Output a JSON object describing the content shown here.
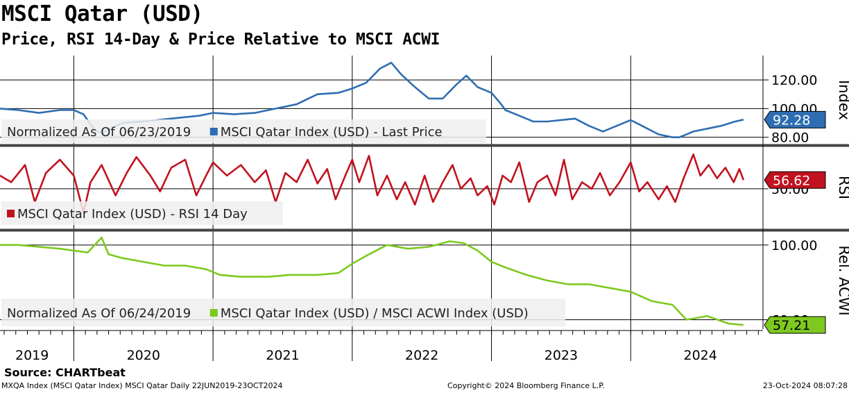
{
  "header": {
    "title": "MSCI Qatar (USD)",
    "subtitle": "Price, RSI 14-Day & Price Relative to MSCI ACWI"
  },
  "footer": {
    "source": "Source: CHARTbeat",
    "left": "MXQA Index (MSCI Qatar Index) MSCI Qatar  Daily 22JUN2019-23OCT2024",
    "middle": "Copyright© 2024 Bloomberg Finance L.P.",
    "right": "23-Oct-2024 08:07:28"
  },
  "chart_data": [
    {
      "type": "line",
      "axis_title": "Index",
      "legend_note": "Normalized As Of 06/23/2019",
      "ylim": [
        75,
        137
      ],
      "yticks": [
        80,
        100,
        120
      ],
      "ytick_labels": [
        "80.00",
        "100.00",
        "120.00"
      ],
      "grid": true,
      "legend_position": "bottom-left",
      "series": [
        {
          "name": "MSCI Qatar Index (USD) - Last Price",
          "color": "#2e6db1",
          "last_value_label": "92.28",
          "points": [
            [
              2019.47,
              100
            ],
            [
              2019.6,
              99
            ],
            [
              2019.75,
              97
            ],
            [
              2019.9,
              99
            ],
            [
              2020.0,
              99
            ],
            [
              2020.07,
              96
            ],
            [
              2020.15,
              85
            ],
            [
              2020.2,
              83
            ],
            [
              2020.35,
              90
            ],
            [
              2020.5,
              91
            ],
            [
              2020.7,
              93
            ],
            [
              2020.9,
              95
            ],
            [
              2021.0,
              97
            ],
            [
              2021.15,
              96
            ],
            [
              2021.3,
              97
            ],
            [
              2021.45,
              100
            ],
            [
              2021.6,
              103
            ],
            [
              2021.75,
              110
            ],
            [
              2021.9,
              111
            ],
            [
              2022.0,
              114
            ],
            [
              2022.1,
              118
            ],
            [
              2022.2,
              128
            ],
            [
              2022.28,
              132
            ],
            [
              2022.35,
              124
            ],
            [
              2022.45,
              115
            ],
            [
              2022.55,
              107
            ],
            [
              2022.65,
              107
            ],
            [
              2022.75,
              117
            ],
            [
              2022.82,
              123
            ],
            [
              2022.9,
              115
            ],
            [
              2023.0,
              111
            ],
            [
              2023.07,
              103
            ],
            [
              2023.1,
              99
            ],
            [
              2023.2,
              95
            ],
            [
              2023.3,
              91
            ],
            [
              2023.4,
              91
            ],
            [
              2023.5,
              92
            ],
            [
              2023.6,
              93
            ],
            [
              2023.7,
              88
            ],
            [
              2023.8,
              84
            ],
            [
              2023.9,
              88
            ],
            [
              2024.0,
              92
            ],
            [
              2024.1,
              87
            ],
            [
              2024.2,
              82
            ],
            [
              2024.3,
              80
            ],
            [
              2024.35,
              80
            ],
            [
              2024.45,
              84
            ],
            [
              2024.55,
              86
            ],
            [
              2024.65,
              88
            ],
            [
              2024.75,
              91
            ],
            [
              2024.81,
              92.28
            ]
          ]
        }
      ]
    },
    {
      "type": "line",
      "axis_title": "RSI",
      "ylim": [
        20,
        82
      ],
      "yticks": [
        50
      ],
      "ytick_labels": [
        "50.00"
      ],
      "grid": true,
      "legend_position": "bottom-left",
      "series": [
        {
          "name": "MSCI Qatar Index (USD) - RSI 14 Day",
          "color": "#c1121f",
          "last_value_label": "56.62",
          "points": [
            [
              2019.47,
              60
            ],
            [
              2019.55,
              55
            ],
            [
              2019.65,
              68
            ],
            [
              2019.72,
              40
            ],
            [
              2019.8,
              62
            ],
            [
              2019.9,
              72
            ],
            [
              2020.0,
              60
            ],
            [
              2020.07,
              32
            ],
            [
              2020.12,
              55
            ],
            [
              2020.2,
              68
            ],
            [
              2020.3,
              45
            ],
            [
              2020.38,
              62
            ],
            [
              2020.45,
              74
            ],
            [
              2020.55,
              60
            ],
            [
              2020.62,
              48
            ],
            [
              2020.7,
              66
            ],
            [
              2020.8,
              72
            ],
            [
              2020.88,
              45
            ],
            [
              2020.95,
              60
            ],
            [
              2021.0,
              70
            ],
            [
              2021.1,
              60
            ],
            [
              2021.2,
              68
            ],
            [
              2021.3,
              55
            ],
            [
              2021.38,
              64
            ],
            [
              2021.45,
              40
            ],
            [
              2021.52,
              62
            ],
            [
              2021.6,
              55
            ],
            [
              2021.68,
              72
            ],
            [
              2021.75,
              54
            ],
            [
              2021.82,
              65
            ],
            [
              2021.88,
              42
            ],
            [
              2021.95,
              60
            ],
            [
              2022.0,
              72
            ],
            [
              2022.05,
              55
            ],
            [
              2022.12,
              75
            ],
            [
              2022.18,
              45
            ],
            [
              2022.25,
              60
            ],
            [
              2022.32,
              42
            ],
            [
              2022.38,
              55
            ],
            [
              2022.45,
              38
            ],
            [
              2022.52,
              60
            ],
            [
              2022.58,
              40
            ],
            [
              2022.65,
              55
            ],
            [
              2022.72,
              68
            ],
            [
              2022.78,
              50
            ],
            [
              2022.85,
              58
            ],
            [
              2022.9,
              45
            ],
            [
              2022.97,
              52
            ],
            [
              2023.02,
              38
            ],
            [
              2023.08,
              60
            ],
            [
              2023.14,
              55
            ],
            [
              2023.2,
              70
            ],
            [
              2023.27,
              40
            ],
            [
              2023.33,
              55
            ],
            [
              2023.4,
              60
            ],
            [
              2023.46,
              45
            ],
            [
              2023.52,
              72
            ],
            [
              2023.58,
              42
            ],
            [
              2023.65,
              55
            ],
            [
              2023.72,
              50
            ],
            [
              2023.78,
              62
            ],
            [
              2023.85,
              45
            ],
            [
              2023.92,
              55
            ],
            [
              2024.0,
              70
            ],
            [
              2024.06,
              48
            ],
            [
              2024.12,
              55
            ],
            [
              2024.2,
              42
            ],
            [
              2024.26,
              52
            ],
            [
              2024.32,
              40
            ],
            [
              2024.38,
              58
            ],
            [
              2024.45,
              76
            ],
            [
              2024.5,
              60
            ],
            [
              2024.56,
              68
            ],
            [
              2024.62,
              58
            ],
            [
              2024.68,
              66
            ],
            [
              2024.74,
              55
            ],
            [
              2024.78,
              65
            ],
            [
              2024.81,
              56.62
            ]
          ]
        }
      ]
    },
    {
      "type": "line",
      "axis_title": "Rel. ACWI",
      "legend_note": "Normalized As Of 06/24/2019",
      "ylim": [
        55,
        107
      ],
      "yticks": [
        60,
        100
      ],
      "ytick_labels": [
        "60.00",
        "100.00"
      ],
      "grid": true,
      "legend_position": "bottom-left",
      "series": [
        {
          "name": "MSCI Qatar Index (USD) / MSCI ACWI Index (USD)",
          "color": "#7dc91f",
          "last_value_label": "57.21",
          "points": [
            [
              2019.47,
              100
            ],
            [
              2019.6,
              100
            ],
            [
              2019.75,
              99
            ],
            [
              2019.9,
              98
            ],
            [
              2020.0,
              97
            ],
            [
              2020.1,
              96
            ],
            [
              2020.2,
              104
            ],
            [
              2020.25,
              95
            ],
            [
              2020.35,
              93
            ],
            [
              2020.5,
              91
            ],
            [
              2020.65,
              89
            ],
            [
              2020.8,
              89
            ],
            [
              2020.95,
              87
            ],
            [
              2021.05,
              84
            ],
            [
              2021.2,
              83
            ],
            [
              2021.4,
              83
            ],
            [
              2021.55,
              84
            ],
            [
              2021.75,
              84
            ],
            [
              2021.9,
              85
            ],
            [
              2022.0,
              90
            ],
            [
              2022.12,
              95
            ],
            [
              2022.25,
              100
            ],
            [
              2022.4,
              98
            ],
            [
              2022.55,
              99
            ],
            [
              2022.7,
              102
            ],
            [
              2022.8,
              101
            ],
            [
              2022.9,
              97
            ],
            [
              2023.0,
              91
            ],
            [
              2023.1,
              88
            ],
            [
              2023.25,
              84
            ],
            [
              2023.4,
              81
            ],
            [
              2023.55,
              79
            ],
            [
              2023.7,
              79
            ],
            [
              2023.85,
              77
            ],
            [
              2024.0,
              75
            ],
            [
              2024.15,
              70
            ],
            [
              2024.3,
              68
            ],
            [
              2024.4,
              60
            ],
            [
              2024.55,
              62
            ],
            [
              2024.7,
              58
            ],
            [
              2024.81,
              57.21
            ]
          ]
        }
      ]
    }
  ],
  "x_axis": {
    "tick_labels": [
      "2019",
      "2020",
      "2021",
      "2022",
      "2023",
      "2024"
    ],
    "label_positions": [
      2019.7,
      2020.5,
      2021.5,
      2022.5,
      2023.5,
      2024.5
    ],
    "year_boundaries": [
      2020.0,
      2021.0,
      2022.0,
      2023.0,
      2024.0
    ],
    "xlim": [
      2019.47,
      2024.95
    ]
  }
}
